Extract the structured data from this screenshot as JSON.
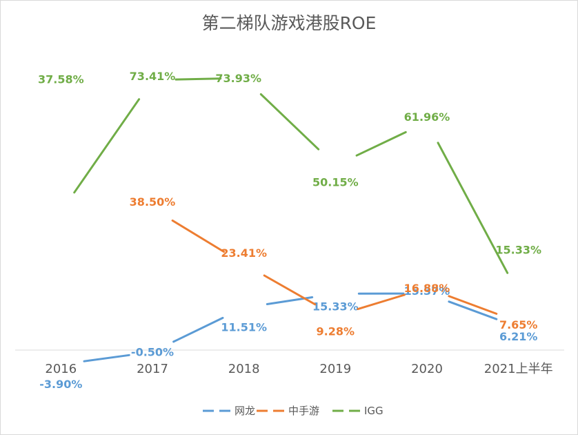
{
  "chart_data": {
    "type": "line",
    "title": "第二梯队游戏港股ROE",
    "categories": [
      "2016",
      "2017",
      "2018",
      "2019",
      "2020",
      "2021上半年"
    ],
    "ylim": [
      -10,
      85
    ],
    "grid": false,
    "legend_position": "bottom",
    "series": [
      {
        "name": "网龙",
        "color": "#5b9bd5",
        "values": [
          -3.9,
          -0.5,
          11.51,
          15.33,
          15.37,
          6.21
        ],
        "labels": [
          "-3.90%",
          "-0.50%",
          "11.51%",
          "15.33%",
          "15.37%",
          "6.21%"
        ]
      },
      {
        "name": "中手游",
        "color": "#ed7d31",
        "values": [
          null,
          38.5,
          23.41,
          9.28,
          16.88,
          7.65
        ],
        "labels": [
          null,
          "38.50%",
          "23.41%",
          "9.28%",
          "16.88%",
          "7.65%"
        ]
      },
      {
        "name": "IGG",
        "color": "#70ad47",
        "values": [
          37.58,
          73.41,
          73.93,
          50.15,
          61.96,
          15.33
        ],
        "labels": [
          "37.58%",
          "73.41%",
          "73.93%",
          "50.15%",
          "61.96%",
          "15.33%"
        ]
      }
    ]
  }
}
